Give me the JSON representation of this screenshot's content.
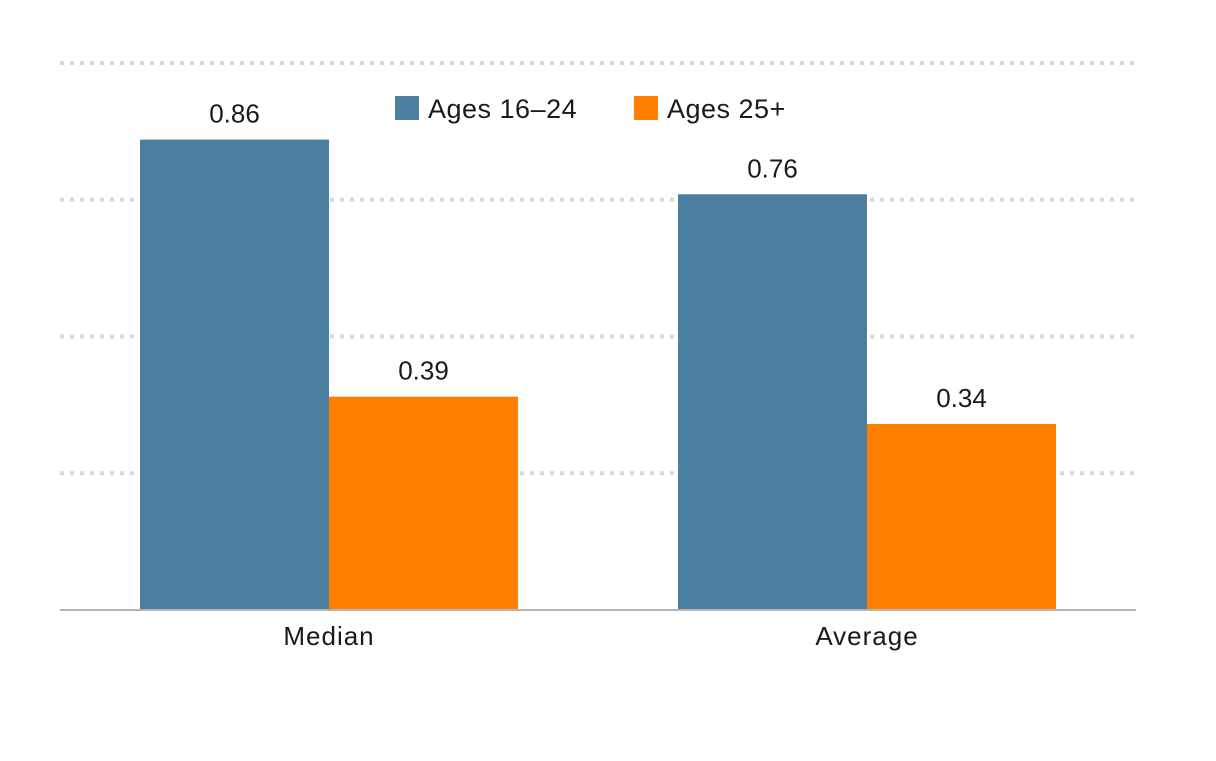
{
  "chart_data": {
    "type": "bar",
    "categories": [
      "Median",
      "Average"
    ],
    "series": [
      {
        "name": "Ages 16–24",
        "values": [
          0.86,
          0.76
        ],
        "color": "#4a7fa0"
      },
      {
        "name": "Ages 25+",
        "values": [
          0.39,
          0.34
        ],
        "color": "#ff8000"
      }
    ],
    "data_labels": [
      [
        "0.86",
        "0.76"
      ],
      [
        "0.39",
        "0.34"
      ]
    ],
    "ylim": [
      0,
      1.0
    ],
    "gridlines": [
      0.25,
      0.5,
      0.75,
      1.0
    ],
    "grid": true,
    "legend_position": "top-center",
    "title": "",
    "xlabel": "",
    "ylabel": ""
  }
}
